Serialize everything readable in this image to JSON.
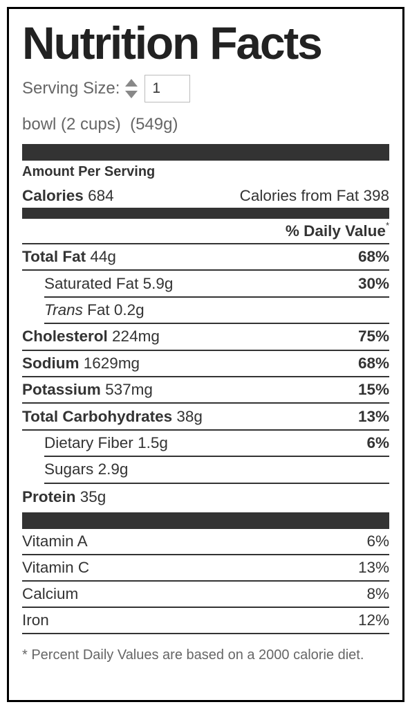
{
  "title": "Nutrition Facts",
  "serving": {
    "label": "Serving Size:",
    "quantity": "1",
    "unit": "bowl (2 cups)",
    "weight": "(549g)"
  },
  "amount_per_serving": "Amount Per Serving",
  "calories": {
    "label": "Calories",
    "value": "684"
  },
  "calories_from_fat": {
    "label": "Calories from Fat",
    "value": "398"
  },
  "daily_value_header": {
    "label": "% Daily Value",
    "mark": "*"
  },
  "nutrients": [
    {
      "name": "Total Fat",
      "amount": "44g",
      "daily_value": "68%",
      "bold": true,
      "indent": false
    },
    {
      "name": "Saturated Fat",
      "amount": "5.9g",
      "daily_value": "30%",
      "bold": false,
      "indent": true
    },
    {
      "prefix": "Trans",
      "name": "Fat",
      "amount": "0.2g",
      "bold": false,
      "indent": true
    },
    {
      "name": "Cholesterol",
      "amount": "224mg",
      "daily_value": "75%",
      "bold": true,
      "indent": false
    },
    {
      "name": "Sodium",
      "amount": "1629mg",
      "daily_value": "68%",
      "bold": true,
      "indent": false
    },
    {
      "name": "Potassium",
      "amount": "537mg",
      "daily_value": "15%",
      "bold": true,
      "indent": false
    },
    {
      "name": "Total Carbohydrates",
      "amount": "38g",
      "daily_value": "13%",
      "bold": true,
      "indent": false
    },
    {
      "name": "Dietary Fiber",
      "amount": "1.5g",
      "daily_value": "6%",
      "bold": false,
      "indent": true
    },
    {
      "name": "Sugars",
      "amount": "2.9g",
      "bold": false,
      "indent": true
    },
    {
      "name": "Protein",
      "amount": "35g",
      "bold": true,
      "indent": false
    }
  ],
  "vitamins": [
    {
      "name": "Vitamin A",
      "daily_value": "6%"
    },
    {
      "name": "Vitamin C",
      "daily_value": "13%"
    },
    {
      "name": "Calcium",
      "daily_value": "8%"
    },
    {
      "name": "Iron",
      "daily_value": "12%"
    }
  ],
  "footnote": "* Percent Daily Values are based on a 2000 calorie diet."
}
